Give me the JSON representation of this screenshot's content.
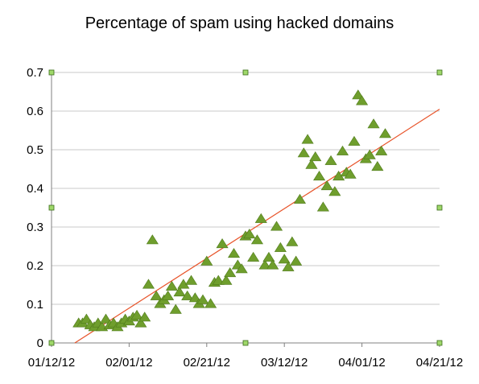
{
  "chart_data": {
    "type": "scatter",
    "title": "Percentage of spam using hacked domains",
    "xlabel": "",
    "ylabel": "",
    "x_ticks": [
      "01/12/12",
      "02/01/12",
      "02/21/12",
      "03/12/12",
      "04/01/12",
      "04/21/12"
    ],
    "y_ticks": [
      "0",
      "0.1",
      "0.2",
      "0.3",
      "0.4",
      "0.5",
      "0.6",
      "0.7"
    ],
    "xlim": [
      "2012-01-12",
      "2012-04-21"
    ],
    "ylim": [
      0,
      0.7
    ],
    "grid": "horizontal",
    "legend": "none",
    "marker": "triangle",
    "colors": {
      "marker": "#6f9e2d",
      "marker_edge": "#4f7a1a",
      "trend": "#e8542a",
      "grid": "#c8c8c8",
      "axis": "#808080",
      "handle": "#9fd86a"
    },
    "series": [
      {
        "points": [
          [
            "2012-01-19",
            0.05
          ],
          [
            "2012-01-20",
            0.05
          ],
          [
            "2012-01-21",
            0.06
          ],
          [
            "2012-01-22",
            0.045
          ],
          [
            "2012-01-23",
            0.04
          ],
          [
            "2012-01-24",
            0.05
          ],
          [
            "2012-01-25",
            0.04
          ],
          [
            "2012-01-26",
            0.06
          ],
          [
            "2012-01-27",
            0.045
          ],
          [
            "2012-01-28",
            0.05
          ],
          [
            "2012-01-29",
            0.04
          ],
          [
            "2012-01-30",
            0.05
          ],
          [
            "2012-01-31",
            0.06
          ],
          [
            "2012-02-01",
            0.055
          ],
          [
            "2012-02-02",
            0.065
          ],
          [
            "2012-02-03",
            0.07
          ],
          [
            "2012-02-04",
            0.05
          ],
          [
            "2012-02-05",
            0.065
          ],
          [
            "2012-02-06",
            0.15
          ],
          [
            "2012-02-07",
            0.265
          ],
          [
            "2012-02-08",
            0.12
          ],
          [
            "2012-02-09",
            0.1
          ],
          [
            "2012-02-10",
            0.11
          ],
          [
            "2012-02-11",
            0.12
          ],
          [
            "2012-02-12",
            0.145
          ],
          [
            "2012-02-13",
            0.085
          ],
          [
            "2012-02-14",
            0.13
          ],
          [
            "2012-02-15",
            0.15
          ],
          [
            "2012-02-16",
            0.12
          ],
          [
            "2012-02-17",
            0.16
          ],
          [
            "2012-02-18",
            0.115
          ],
          [
            "2012-02-19",
            0.1
          ],
          [
            "2012-02-20",
            0.11
          ],
          [
            "2012-02-21",
            0.21
          ],
          [
            "2012-02-22",
            0.1
          ],
          [
            "2012-02-23",
            0.155
          ],
          [
            "2012-02-24",
            0.16
          ],
          [
            "2012-02-25",
            0.255
          ],
          [
            "2012-02-26",
            0.16
          ],
          [
            "2012-02-27",
            0.18
          ],
          [
            "2012-02-28",
            0.23
          ],
          [
            "2012-02-29",
            0.2
          ],
          [
            "2012-03-01",
            0.19
          ],
          [
            "2012-03-02",
            0.275
          ],
          [
            "2012-03-03",
            0.28
          ],
          [
            "2012-03-04",
            0.22
          ],
          [
            "2012-03-05",
            0.265
          ],
          [
            "2012-03-06",
            0.32
          ],
          [
            "2012-03-07",
            0.2
          ],
          [
            "2012-03-08",
            0.22
          ],
          [
            "2012-03-09",
            0.2
          ],
          [
            "2012-03-10",
            0.3
          ],
          [
            "2012-03-11",
            0.245
          ],
          [
            "2012-03-12",
            0.215
          ],
          [
            "2012-03-13",
            0.195
          ],
          [
            "2012-03-14",
            0.26
          ],
          [
            "2012-03-15",
            0.21
          ],
          [
            "2012-03-16",
            0.37
          ],
          [
            "2012-03-17",
            0.49
          ],
          [
            "2012-03-18",
            0.525
          ],
          [
            "2012-03-19",
            0.46
          ],
          [
            "2012-03-20",
            0.48
          ],
          [
            "2012-03-21",
            0.43
          ],
          [
            "2012-03-22",
            0.35
          ],
          [
            "2012-03-23",
            0.405
          ],
          [
            "2012-03-24",
            0.47
          ],
          [
            "2012-03-25",
            0.39
          ],
          [
            "2012-03-26",
            0.43
          ],
          [
            "2012-03-27",
            0.495
          ],
          [
            "2012-03-28",
            0.44
          ],
          [
            "2012-03-29",
            0.435
          ],
          [
            "2012-03-30",
            0.52
          ],
          [
            "2012-03-31",
            0.64
          ],
          [
            "2012-04-01",
            0.625
          ],
          [
            "2012-04-02",
            0.475
          ],
          [
            "2012-04-03",
            0.485
          ],
          [
            "2012-04-04",
            0.565
          ],
          [
            "2012-04-05",
            0.455
          ],
          [
            "2012-04-06",
            0.495
          ],
          [
            "2012-04-07",
            0.54
          ]
        ]
      }
    ],
    "trendline": {
      "type": "linear",
      "from": [
        "2012-01-18",
        0.0
      ],
      "to": [
        "2012-04-21",
        0.605
      ]
    }
  }
}
